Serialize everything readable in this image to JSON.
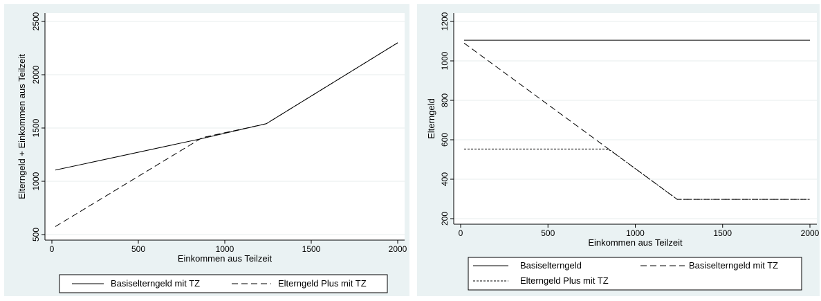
{
  "chart_data": [
    {
      "type": "line",
      "xlabel": "Einkommen aus Teilzeit",
      "ylabel": "Elterngeld + Einkommen aus Teilzeit",
      "xlim": [
        0,
        2000
      ],
      "ylim": [
        500,
        2500
      ],
      "xticks": [
        "0",
        "500",
        "1000",
        "1500",
        "2000"
      ],
      "yticks": [
        "500",
        "1000",
        "1500",
        "2000",
        "2500"
      ],
      "grid": true,
      "legend_position": "bottom",
      "series": [
        {
          "name": "Basiselterngeld mit TZ",
          "dash": "solid",
          "points": [
            [
              20,
              1105
            ],
            [
              850,
              1395
            ],
            [
              1240,
              1540
            ],
            [
              2000,
              2300
            ]
          ]
        },
        {
          "name": "Elterngeld Plus mit TZ",
          "dash": "long",
          "points": [
            [
              20,
              575
            ],
            [
              870,
              1410
            ],
            [
              1240,
              1540
            ],
            [
              2000,
              2300
            ]
          ]
        }
      ]
    },
    {
      "type": "line",
      "xlabel": "Einkommen aus Teilzeit",
      "ylabel": "Elterngeld",
      "xlim": [
        0,
        2000
      ],
      "ylim": [
        200,
        1200
      ],
      "xticks": [
        "0",
        "500",
        "1000",
        "1500",
        "2000"
      ],
      "yticks": [
        "200",
        "400",
        "600",
        "800",
        "1000",
        "1200"
      ],
      "grid": true,
      "legend_position": "bottom",
      "series": [
        {
          "name": "Basiselterngeld",
          "dash": "solid",
          "points": [
            [
              20,
              1105
            ],
            [
              2000,
              1105
            ]
          ]
        },
        {
          "name": "Basiselterngeld mit TZ",
          "dash": "long",
          "points": [
            [
              20,
              1090
            ],
            [
              1240,
              298
            ],
            [
              2000,
              298
            ]
          ]
        },
        {
          "name": "Elterngeld Plus mit TZ",
          "dash": "short",
          "points": [
            [
              20,
              553
            ],
            [
              830,
              553
            ],
            [
              860,
              545
            ],
            [
              1240,
              298
            ],
            [
              2000,
              298
            ]
          ]
        }
      ]
    }
  ]
}
